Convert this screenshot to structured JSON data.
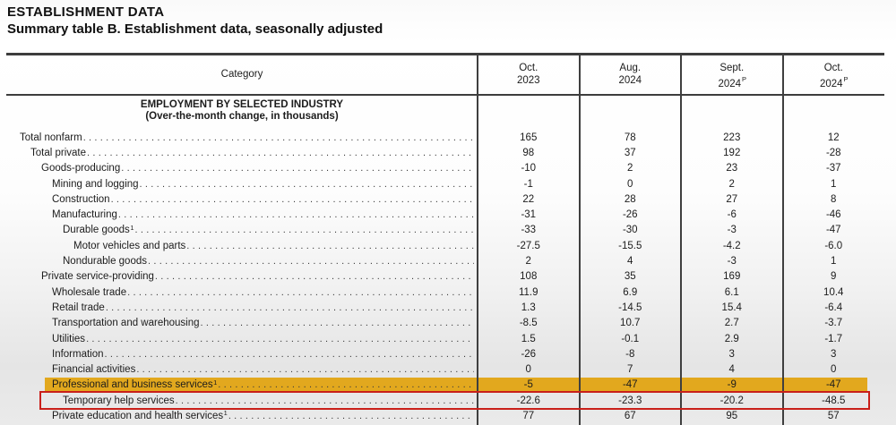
{
  "page": {
    "title": "ESTABLISHMENT DATA",
    "subtitle": "Summary table B. Establishment data, seasonally adjusted"
  },
  "table": {
    "category_header": "Category",
    "section_header_line1": "EMPLOYMENT BY SELECTED INDUSTRY",
    "section_header_line2": "(Over-the-month change, in thousands)",
    "columns": [
      {
        "month": "Oct.",
        "year": "2023",
        "sup": ""
      },
      {
        "month": "Aug.",
        "year": "2024",
        "sup": ""
      },
      {
        "month": "Sept.",
        "year": "2024",
        "sup": "P"
      },
      {
        "month": "Oct.",
        "year": "2024",
        "sup": "P"
      }
    ],
    "rows": [
      {
        "label": "Total nonfarm",
        "sup": "",
        "indent": 0,
        "values": [
          "165",
          "78",
          "223",
          "12"
        ],
        "highlight": "none"
      },
      {
        "label": "Total private",
        "sup": "",
        "indent": 1,
        "values": [
          "98",
          "37",
          "192",
          "-28"
        ],
        "highlight": "none"
      },
      {
        "label": "Goods-producing",
        "sup": "",
        "indent": 2,
        "values": [
          "-10",
          "2",
          "23",
          "-37"
        ],
        "highlight": "none"
      },
      {
        "label": "Mining and logging",
        "sup": "",
        "indent": 3,
        "values": [
          "-1",
          "0",
          "2",
          "1"
        ],
        "highlight": "none"
      },
      {
        "label": "Construction",
        "sup": "",
        "indent": 3,
        "values": [
          "22",
          "28",
          "27",
          "8"
        ],
        "highlight": "none"
      },
      {
        "label": "Manufacturing",
        "sup": "",
        "indent": 3,
        "values": [
          "-31",
          "-26",
          "-6",
          "-46"
        ],
        "highlight": "none"
      },
      {
        "label": "Durable goods",
        "sup": "1",
        "indent": 4,
        "values": [
          "-33",
          "-30",
          "-3",
          "-47"
        ],
        "highlight": "none"
      },
      {
        "label": "Motor vehicles and parts",
        "sup": "",
        "indent": 5,
        "values": [
          "-27.5",
          "-15.5",
          "-4.2",
          "-6.0"
        ],
        "highlight": "none"
      },
      {
        "label": "Nondurable goods",
        "sup": "",
        "indent": 4,
        "values": [
          "2",
          "4",
          "-3",
          "1"
        ],
        "highlight": "none"
      },
      {
        "label": "Private service-providing",
        "sup": "",
        "indent": 2,
        "values": [
          "108",
          "35",
          "169",
          "9"
        ],
        "highlight": "none"
      },
      {
        "label": "Wholesale trade",
        "sup": "",
        "indent": 3,
        "values": [
          "11.9",
          "6.9",
          "6.1",
          "10.4"
        ],
        "highlight": "none"
      },
      {
        "label": "Retail trade",
        "sup": "",
        "indent": 3,
        "values": [
          "1.3",
          "-14.5",
          "15.4",
          "-6.4"
        ],
        "highlight": "none"
      },
      {
        "label": "Transportation and warehousing",
        "sup": "",
        "indent": 3,
        "values": [
          "-8.5",
          "10.7",
          "2.7",
          "-3.7"
        ],
        "highlight": "none"
      },
      {
        "label": "Utilities",
        "sup": "",
        "indent": 3,
        "values": [
          "1.5",
          "-0.1",
          "2.9",
          "-1.7"
        ],
        "highlight": "none"
      },
      {
        "label": "Information",
        "sup": "",
        "indent": 3,
        "values": [
          "-26",
          "-8",
          "3",
          "3"
        ],
        "highlight": "none"
      },
      {
        "label": "Financial activities",
        "sup": "",
        "indent": 3,
        "values": [
          "0",
          "7",
          "4",
          "0"
        ],
        "highlight": "none"
      },
      {
        "label": "Professional and business services",
        "sup": "1",
        "indent": 3,
        "values": [
          "-5",
          "-47",
          "-9",
          "-47"
        ],
        "highlight": "yellow"
      },
      {
        "label": "Temporary help services",
        "sup": "",
        "indent": 4,
        "values": [
          "-22.6",
          "-23.3",
          "-20.2",
          "-48.5"
        ],
        "highlight": "red-outline"
      },
      {
        "label": "Private education and health services",
        "sup": "1",
        "indent": 3,
        "values": [
          "77",
          "67",
          "95",
          "57"
        ],
        "highlight": "none"
      }
    ],
    "highlight_colors": {
      "yellow_row_background": "#e2a81e",
      "red_row_outline": "#c9201a"
    }
  }
}
